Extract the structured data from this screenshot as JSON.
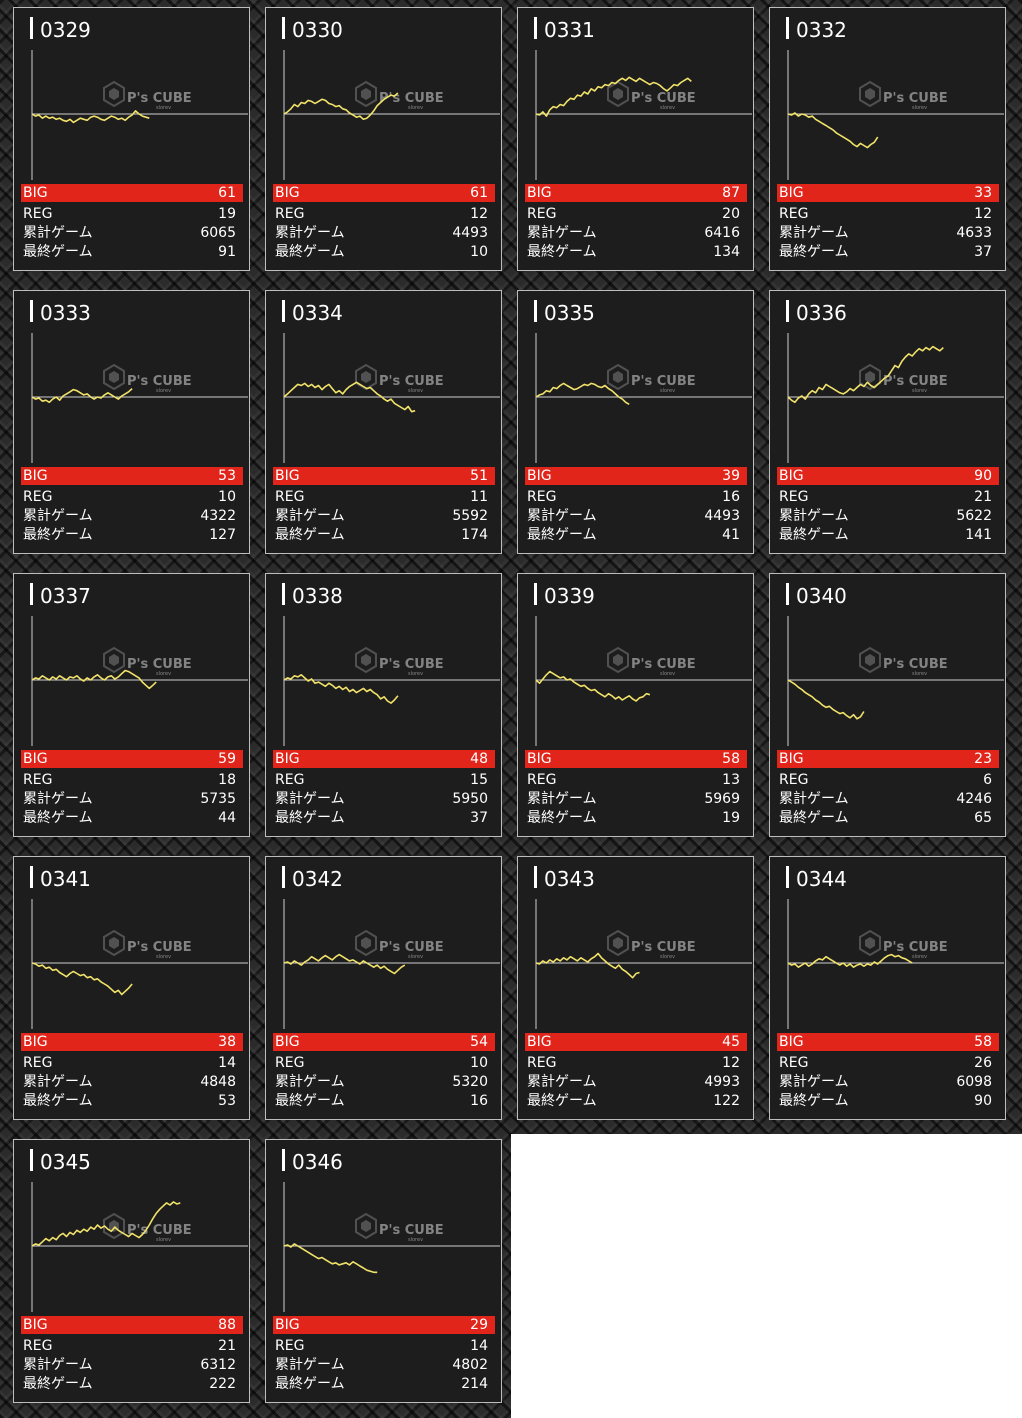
{
  "labels": {
    "big": "BIG",
    "reg": "REG",
    "total": "累計ゲーム",
    "last": "最終ゲーム"
  },
  "watermark": {
    "text": "P's CUBE",
    "sub": "slorev",
    "icon": "cube-logo-icon"
  },
  "colors": {
    "accent": "#e1251b",
    "line": "#f1e26a",
    "panel": "#1d1d1d",
    "border": "#bdbdbd"
  },
  "machines": [
    {
      "id": "0329",
      "big": "61",
      "reg": "19",
      "total": "6065",
      "last": "91",
      "chart_data": {
        "type": "line",
        "trend": [
          0,
          -2,
          -1,
          -4,
          -2,
          -4,
          -3,
          -5,
          -4,
          -6,
          -7,
          -5,
          -8,
          -6,
          -4,
          -5,
          -6,
          -3,
          -2,
          -3,
          -5,
          -6,
          -4,
          -2,
          -3,
          -5,
          -4,
          -6,
          -3,
          -1,
          3,
          0,
          -2,
          -3,
          -4
        ]
      }
    },
    {
      "id": "0330",
      "big": "61",
      "reg": "12",
      "total": "4493",
      "last": "10",
      "chart_data": {
        "type": "line",
        "trend": [
          0,
          2,
          5,
          9,
          7,
          11,
          10,
          13,
          12,
          10,
          12,
          14,
          13,
          10,
          9,
          7,
          8,
          5,
          4,
          1,
          -1,
          -3,
          -2,
          -5,
          -4,
          -1,
          3,
          8,
          11,
          14,
          16,
          18,
          17,
          20
        ]
      }
    },
    {
      "id": "0331",
      "big": "87",
      "reg": "20",
      "total": "6416",
      "last": "134",
      "chart_data": {
        "type": "line",
        "trend": [
          0,
          -1,
          2,
          -2,
          4,
          7,
          6,
          9,
          8,
          12,
          15,
          14,
          18,
          17,
          21,
          19,
          24,
          22,
          26,
          25,
          28,
          27,
          30,
          29,
          32,
          34,
          32,
          35,
          33,
          31,
          34,
          32,
          30,
          28,
          30,
          29,
          27,
          24,
          22,
          25,
          28,
          27,
          30,
          32,
          34,
          31
        ]
      }
    },
    {
      "id": "0332",
      "big": "33",
      "reg": "12",
      "total": "4633",
      "last": "37",
      "chart_data": {
        "type": "line",
        "trend": [
          0,
          -1,
          1,
          -2,
          0,
          -1,
          -3,
          -2,
          -5,
          -7,
          -9,
          -11,
          -13,
          -15,
          -18,
          -20,
          -22,
          -24,
          -26,
          -29,
          -31,
          -28,
          -30,
          -32,
          -29,
          -27,
          -22
        ]
      }
    },
    {
      "id": "0333",
      "big": "53",
      "reg": "10",
      "total": "4322",
      "last": "127",
      "chart_data": {
        "type": "line",
        "trend": [
          0,
          -2,
          -1,
          -4,
          -3,
          -5,
          -2,
          0,
          -3,
          1,
          3,
          5,
          7,
          6,
          4,
          2,
          3,
          0,
          -2,
          0,
          -1,
          2,
          4,
          2,
          0,
          -2,
          1,
          3,
          5,
          8
        ]
      }
    },
    {
      "id": "0334",
      "big": "51",
      "reg": "11",
      "total": "5592",
      "last": "174",
      "chart_data": {
        "type": "line",
        "trend": [
          0,
          3,
          6,
          9,
          12,
          11,
          13,
          10,
          12,
          9,
          11,
          7,
          10,
          12,
          8,
          4,
          6,
          3,
          7,
          10,
          12,
          14,
          12,
          10,
          8,
          9,
          6,
          3,
          1,
          -2,
          -4,
          -2,
          -6,
          -8,
          -10,
          -12,
          -9,
          -14,
          -13
        ]
      }
    },
    {
      "id": "0335",
      "big": "39",
      "reg": "16",
      "total": "4493",
      "last": "41",
      "chart_data": {
        "type": "line",
        "trend": [
          0,
          2,
          3,
          6,
          5,
          9,
          8,
          11,
          13,
          11,
          9,
          7,
          8,
          10,
          12,
          11,
          13,
          12,
          10,
          9,
          11,
          8,
          6,
          3,
          0,
          -2,
          -5,
          -7
        ]
      }
    },
    {
      "id": "0336",
      "big": "90",
      "reg": "21",
      "total": "5622",
      "last": "141",
      "chart_data": {
        "type": "line",
        "trend": [
          0,
          -3,
          -5,
          -1,
          1,
          -2,
          3,
          6,
          4,
          9,
          7,
          12,
          10,
          8,
          6,
          4,
          3,
          5,
          8,
          6,
          9,
          12,
          10,
          14,
          11,
          9,
          12,
          15,
          18,
          20,
          25,
          30,
          28,
          34,
          38,
          41,
          39,
          43,
          46,
          44,
          47,
          45,
          48,
          46,
          44,
          47
        ]
      }
    },
    {
      "id": "0337",
      "big": "59",
      "reg": "18",
      "total": "5735",
      "last": "44",
      "chart_data": {
        "type": "line",
        "trend": [
          0,
          2,
          1,
          4,
          2,
          0,
          3,
          1,
          4,
          2,
          0,
          3,
          2,
          4,
          1,
          -1,
          2,
          0,
          3,
          5,
          2,
          0,
          3,
          4,
          1,
          3,
          6,
          9,
          8,
          6,
          4,
          2,
          -2,
          -5,
          -8,
          -5,
          -2
        ]
      }
    },
    {
      "id": "0338",
      "big": "48",
      "reg": "15",
      "total": "5950",
      "last": "37",
      "chart_data": {
        "type": "line",
        "trend": [
          0,
          2,
          1,
          4,
          3,
          5,
          2,
          -1,
          1,
          -3,
          -2,
          -4,
          -6,
          -3,
          -5,
          -8,
          -6,
          -9,
          -7,
          -11,
          -9,
          -12,
          -10,
          -8,
          -11,
          -9,
          -12,
          -14,
          -18,
          -16,
          -20,
          -22,
          -19,
          -15
        ]
      }
    },
    {
      "id": "0339",
      "big": "58",
      "reg": "13",
      "total": "5969",
      "last": "19",
      "chart_data": {
        "type": "line",
        "trend": [
          0,
          -3,
          1,
          5,
          8,
          6,
          4,
          2,
          3,
          0,
          1,
          -2,
          -4,
          -6,
          -5,
          -8,
          -10,
          -9,
          -12,
          -14,
          -16,
          -13,
          -15,
          -18,
          -16,
          -19,
          -17,
          -15,
          -18,
          -20,
          -17,
          -16,
          -13,
          -14
        ]
      }
    },
    {
      "id": "0340",
      "big": "23",
      "reg": "6",
      "total": "4246",
      "last": "65",
      "chart_data": {
        "type": "line",
        "trend": [
          0,
          -2,
          -4,
          -7,
          -9,
          -12,
          -14,
          -16,
          -19,
          -21,
          -24,
          -26,
          -25,
          -28,
          -30,
          -32,
          -31,
          -34,
          -36,
          -33,
          -37,
          -35,
          -30
        ]
      }
    },
    {
      "id": "0341",
      "big": "38",
      "reg": "14",
      "total": "4848",
      "last": "53",
      "chart_data": {
        "type": "line",
        "trend": [
          0,
          -1,
          -3,
          -2,
          -5,
          -4,
          -7,
          -6,
          -9,
          -11,
          -13,
          -10,
          -8,
          -10,
          -12,
          -11,
          -14,
          -13,
          -16,
          -15,
          -18,
          -20,
          -22,
          -25,
          -28,
          -26,
          -30,
          -27,
          -24,
          -20
        ]
      }
    },
    {
      "id": "0342",
      "big": "54",
      "reg": "10",
      "total": "5320",
      "last": "16",
      "chart_data": {
        "type": "line",
        "trend": [
          0,
          1,
          -1,
          2,
          0,
          -2,
          1,
          3,
          6,
          4,
          2,
          5,
          7,
          5,
          3,
          6,
          8,
          6,
          4,
          2,
          3,
          1,
          -1,
          2,
          0,
          -2,
          -4,
          -2,
          -5,
          -3,
          -6,
          -8,
          -10,
          -7,
          -4,
          -2
        ]
      }
    },
    {
      "id": "0343",
      "big": "45",
      "reg": "12",
      "total": "4993",
      "last": "122",
      "chart_data": {
        "type": "line",
        "trend": [
          0,
          -1,
          2,
          0,
          3,
          1,
          4,
          2,
          5,
          3,
          6,
          4,
          2,
          5,
          3,
          1,
          4,
          6,
          9,
          5,
          2,
          -1,
          -3,
          -5,
          -2,
          -6,
          -8,
          -11,
          -14,
          -10,
          -9
        ]
      }
    },
    {
      "id": "0344",
      "big": "58",
      "reg": "26",
      "total": "6098",
      "last": "90",
      "chart_data": {
        "type": "line",
        "trend": [
          0,
          -2,
          -1,
          -4,
          -2,
          0,
          -3,
          -1,
          2,
          4,
          3,
          6,
          4,
          2,
          0,
          -2,
          0,
          -3,
          -1,
          -4,
          -2,
          -1,
          -3,
          -1,
          -2,
          1,
          -1,
          2,
          5,
          7,
          8,
          6,
          7,
          5,
          4,
          2,
          0
        ]
      }
    },
    {
      "id": "0345",
      "big": "88",
      "reg": "21",
      "total": "6312",
      "last": "222",
      "chart_data": {
        "type": "line",
        "trend": [
          0,
          2,
          1,
          4,
          7,
          5,
          8,
          6,
          10,
          12,
          9,
          13,
          11,
          15,
          13,
          16,
          14,
          18,
          16,
          20,
          17,
          19,
          16,
          14,
          18,
          15,
          13,
          11,
          9,
          12,
          10,
          8,
          11,
          15,
          20,
          26,
          31,
          35,
          38,
          41,
          39,
          42,
          40,
          41
        ]
      }
    },
    {
      "id": "0346",
      "big": "29",
      "reg": "14",
      "total": "4802",
      "last": "214",
      "chart_data": {
        "type": "line",
        "trend": [
          0,
          1,
          -1,
          2,
          0,
          -2,
          -4,
          -6,
          -8,
          -10,
          -12,
          -11,
          -13,
          -15,
          -17,
          -16,
          -18,
          -17,
          -16,
          -18,
          -15,
          -17,
          -19,
          -21,
          -23,
          -24,
          -25,
          -25
        ]
      }
    }
  ]
}
